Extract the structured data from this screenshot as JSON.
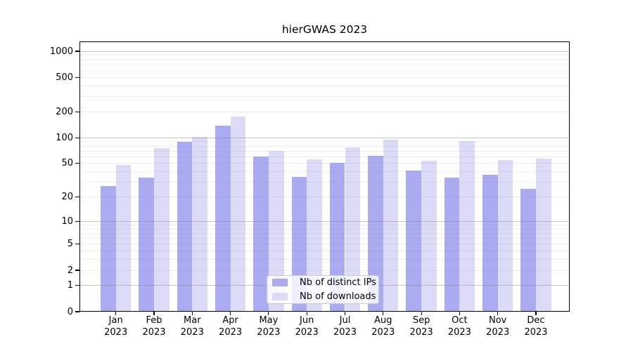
{
  "chart_data": {
    "type": "bar",
    "title": "hierGWAS 2023",
    "months": [
      "Jan",
      "Feb",
      "Mar",
      "Apr",
      "May",
      "Jun",
      "Jul",
      "Aug",
      "Sep",
      "Oct",
      "Nov",
      "Dec"
    ],
    "year": "2023",
    "series": [
      {
        "name": "Nb of distinct IPs",
        "color": "#ababf2",
        "values": [
          27,
          34,
          89,
          138,
          60,
          35,
          51,
          61,
          41,
          34,
          37,
          25
        ]
      },
      {
        "name": "Nb of downloads",
        "color": "#dbdbf8",
        "values": [
          48,
          75,
          102,
          176,
          70,
          56,
          77,
          95,
          54,
          91,
          55,
          57
        ]
      }
    ],
    "y_scale": "log1p",
    "ylim": [
      0,
      1300
    ],
    "y_ticks": [
      1000,
      500,
      200,
      100,
      50,
      20,
      10,
      5,
      2,
      1,
      0
    ],
    "major_grid_values": [
      1,
      10,
      100,
      1000
    ],
    "minor_grid_values": [
      2,
      3,
      4,
      5,
      6,
      7,
      8,
      9,
      20,
      30,
      40,
      50,
      60,
      70,
      80,
      90,
      200,
      300,
      400,
      500,
      600,
      700,
      800,
      900
    ],
    "grid": true,
    "legend_position": "lower center"
  },
  "colors": {
    "major_grid": "rgba(128,128,128,0.45)",
    "minor_grid": "rgba(128,128,128,0.14)",
    "spine": "#000000",
    "background": "#ffffff",
    "text": "#000000"
  }
}
